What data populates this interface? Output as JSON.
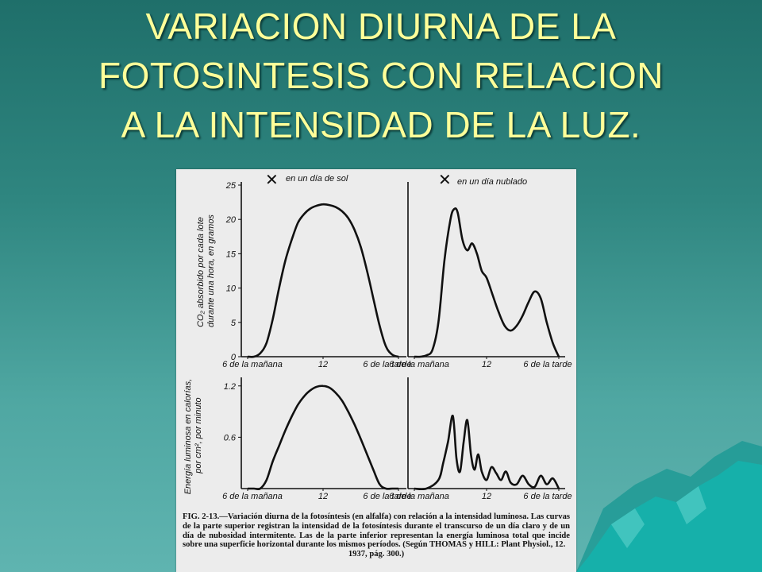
{
  "slide": {
    "title_lines": [
      "VARIACION DIURNA DE LA",
      "FOTOSINTESIS CON RELACION",
      "A LA INTENSIDAD DE LA LUZ."
    ],
    "colors": {
      "title": "#ffff99",
      "background": "#2f8680",
      "mountain": "#1aa6a0"
    }
  },
  "figure": {
    "caption_body": "FIG. 2-13.—Variación diurna de la fotosíntesis (en alfalfa) con relación a la intensidad luminosa. Las curvas de la parte superior registran la intensidad de la fotosíntesis durante el transcurso de un día claro y de un día de nubosidad intermitente. Las de la parte inferior representan la energía luminosa total que incide sobre una superficie horizontal durante los mismos períodos. (Según THOMAS y HILL: Plant Physiol., 12.",
    "caption_end": "1937, pág. 300.)"
  },
  "chart_data": [
    {
      "type": "line",
      "title": "en un día de sol",
      "ylabel": "CO₂ absorbido por cada lote durante una hora, en gramos",
      "xlabel": "",
      "x_ticks": [
        "6 de la mañana",
        "12",
        "6 de la tarde"
      ],
      "y_ticks": [
        "0",
        "5",
        "10",
        "15",
        "20",
        "25"
      ],
      "xlim": [
        6,
        18
      ],
      "ylim": [
        0,
        25
      ],
      "x": [
        6,
        6.5,
        7,
        7.5,
        8,
        8.5,
        9,
        9.5,
        10,
        10.5,
        11,
        11.5,
        12,
        12.5,
        13,
        13.5,
        14,
        14.5,
        15,
        15.5,
        16,
        16.5,
        17,
        17.5,
        18
      ],
      "y": [
        0,
        0,
        0.5,
        2,
        5.5,
        10,
        14,
        17,
        19.5,
        20.8,
        21.6,
        22,
        22.2,
        22.1,
        21.8,
        21.2,
        20.2,
        18.5,
        16,
        12.5,
        8.5,
        4.5,
        1.5,
        0.3,
        0
      ]
    },
    {
      "type": "line",
      "title": "en un día nublado",
      "x_ticks": [
        "6 de la mañana",
        "12",
        "6 de la tarde"
      ],
      "xlim": [
        6,
        18
      ],
      "ylim": [
        0,
        25
      ],
      "x": [
        6,
        6.5,
        7,
        7.5,
        8,
        8.5,
        9,
        9.3,
        9.6,
        10,
        10.4,
        10.8,
        11.2,
        11.6,
        12,
        12.5,
        13,
        13.5,
        14,
        14.5,
        15,
        15.5,
        16,
        16.5,
        17,
        17.5,
        18
      ],
      "y": [
        0,
        0,
        0.2,
        1,
        5,
        14,
        20,
        21.5,
        21,
        17,
        15.5,
        16.5,
        15,
        12.5,
        11.5,
        9,
        6.5,
        4.5,
        3.8,
        4.5,
        6,
        8,
        9.5,
        8.5,
        5,
        2,
        0
      ]
    },
    {
      "type": "line",
      "ylabel": "Energía luminosa en calorías, por cm², por minuto",
      "x_ticks": [
        "6 de la mañana",
        "12",
        "6 de la tarde"
      ],
      "y_ticks": [
        "0.6",
        "1.2"
      ],
      "xlim": [
        6,
        18
      ],
      "ylim": [
        0,
        1.3
      ],
      "x": [
        6,
        6.5,
        7,
        7.5,
        8,
        8.5,
        9,
        9.5,
        10,
        10.5,
        11,
        11.5,
        12,
        12.5,
        13,
        13.5,
        14,
        14.5,
        15,
        15.5,
        16,
        16.5,
        17,
        17.5,
        18
      ],
      "y": [
        0,
        0,
        0,
        0.1,
        0.32,
        0.5,
        0.68,
        0.84,
        0.98,
        1.08,
        1.15,
        1.19,
        1.2,
        1.18,
        1.12,
        1.03,
        0.9,
        0.75,
        0.58,
        0.4,
        0.22,
        0.05,
        0,
        0,
        0
      ]
    },
    {
      "type": "line",
      "x_ticks": [
        "6 de la mañana",
        "12",
        "6 de la tarde"
      ],
      "xlim": [
        6,
        18
      ],
      "ylim": [
        0,
        1.3
      ],
      "x": [
        6,
        7,
        8,
        8.4,
        8.8,
        9.2,
        9.5,
        9.8,
        10.1,
        10.4,
        10.7,
        11,
        11.3,
        11.6,
        12,
        12.4,
        12.8,
        13.2,
        13.6,
        14,
        14.5,
        15,
        15.5,
        16,
        16.5,
        17,
        17.5,
        18
      ],
      "y": [
        0,
        0,
        0.1,
        0.3,
        0.55,
        0.85,
        0.35,
        0.2,
        0.55,
        0.8,
        0.4,
        0.22,
        0.4,
        0.2,
        0.1,
        0.25,
        0.18,
        0.1,
        0.2,
        0.07,
        0.05,
        0.15,
        0.05,
        0.02,
        0.15,
        0.05,
        0.12,
        0
      ]
    }
  ]
}
